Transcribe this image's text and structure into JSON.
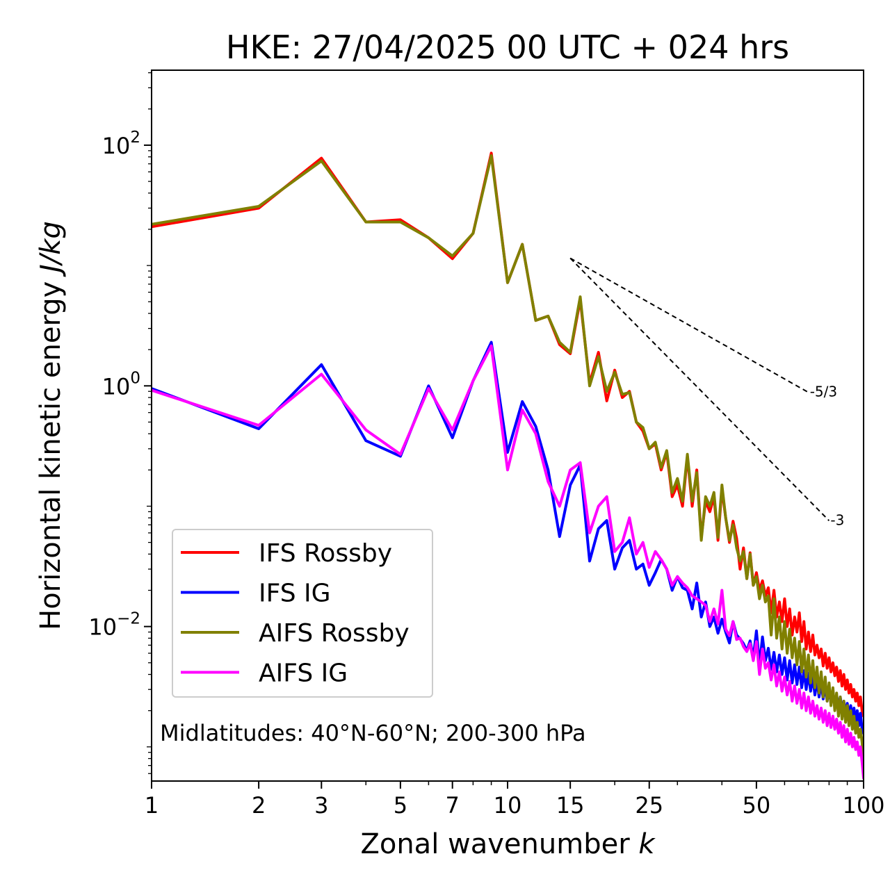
{
  "chart_data": {
    "type": "line",
    "title": "HKE: 27/04/2025 00 UTC + 024 hrs",
    "xlabel": "Zonal wavenumber ",
    "xlabel_italic": "k",
    "ylabel": "Horizontal kinetic energy ",
    "ylabel_italic": "J/kg",
    "x_scale": "log",
    "y_scale": "log",
    "xlim": [
      1,
      100
    ],
    "ylim": [
      0.00052,
      420
    ],
    "x_ticks": [
      {
        "value": 1,
        "label": "1"
      },
      {
        "value": 2,
        "label": "2"
      },
      {
        "value": 3,
        "label": "3"
      },
      {
        "value": 5,
        "label": "5"
      },
      {
        "value": 7,
        "label": "7"
      },
      {
        "value": 10,
        "label": "10"
      },
      {
        "value": 15,
        "label": "15"
      },
      {
        "value": 25,
        "label": "25"
      },
      {
        "value": 50,
        "label": "50"
      },
      {
        "value": 100,
        "label": "100"
      }
    ],
    "y_ticks": [
      {
        "value": 0.01,
        "base": "10",
        "exp": "−2"
      },
      {
        "value": 1,
        "base": "10",
        "exp": "0"
      },
      {
        "value": 100,
        "base": "10",
        "exp": "2"
      }
    ],
    "grid": false,
    "legend_position": "lower-left",
    "annotation": "Midlatitudes: 40°N-60°N; 200-300 hPa",
    "reference_lines": [
      {
        "label": "-5/3",
        "slope": -1.6667,
        "x": [
          15,
          70
        ],
        "y_start": 11.5
      },
      {
        "label": "-3",
        "slope": -3,
        "x": [
          15,
          80
        ],
        "y_start": 11.5
      }
    ],
    "series": [
      {
        "name": "IFS Rossby",
        "color": "#ff0000",
        "x": [
          1,
          2,
          3,
          4,
          5,
          6,
          7,
          8,
          9,
          10,
          11,
          12,
          13,
          14,
          15,
          16,
          17,
          18,
          19,
          20,
          21,
          22,
          23,
          24,
          25,
          26,
          27,
          28,
          29,
          30,
          31,
          32,
          33,
          34,
          35,
          36,
          37,
          38,
          39,
          40,
          41,
          42,
          43,
          44,
          45,
          46,
          47,
          48,
          49,
          50,
          51,
          52,
          53,
          54,
          55,
          56,
          57,
          58,
          59,
          60,
          61,
          62,
          63,
          64,
          65,
          66,
          67,
          68,
          69,
          70,
          71,
          72,
          73,
          74,
          75,
          76,
          77,
          78,
          79,
          80,
          81,
          82,
          83,
          84,
          85,
          86,
          87,
          88,
          89,
          90,
          91,
          92,
          93,
          94,
          95,
          96,
          97,
          98,
          99,
          100
        ],
        "y": [
          21,
          30,
          78,
          23,
          24,
          17,
          11.4,
          18.5,
          86,
          7.2,
          15,
          3.5,
          3.8,
          2.2,
          1.85,
          5.2,
          1.05,
          1.9,
          0.75,
          1.35,
          0.8,
          0.9,
          0.5,
          0.42,
          0.3,
          0.33,
          0.2,
          0.28,
          0.12,
          0.15,
          0.1,
          0.26,
          0.1,
          0.2,
          0.055,
          0.11,
          0.09,
          0.12,
          0.052,
          0.14,
          0.08,
          0.05,
          0.075,
          0.054,
          0.03,
          0.045,
          0.025,
          0.041,
          0.022,
          0.028,
          0.02,
          0.024,
          0.018,
          0.021,
          0.013,
          0.02,
          0.012,
          0.016,
          0.011,
          0.017,
          0.01,
          0.014,
          0.0085,
          0.012,
          0.009,
          0.013,
          0.0075,
          0.011,
          0.0065,
          0.009,
          0.0062,
          0.0085,
          0.0058,
          0.007,
          0.0055,
          0.0065,
          0.0047,
          0.006,
          0.0045,
          0.0055,
          0.0042,
          0.005,
          0.0039,
          0.0046,
          0.0035,
          0.0043,
          0.0032,
          0.004,
          0.003,
          0.0036,
          0.0028,
          0.0033,
          0.0026,
          0.003,
          0.0024,
          0.0028,
          0.0022,
          0.0026,
          0.002,
          0.0018
        ]
      },
      {
        "name": "IFS IG",
        "color": "#0000ff",
        "x": [
          1,
          2,
          3,
          4,
          5,
          6,
          7,
          8,
          9,
          10,
          11,
          12,
          13,
          14,
          15,
          16,
          17,
          18,
          19,
          20,
          21,
          22,
          23,
          24,
          25,
          26,
          27,
          28,
          29,
          30,
          31,
          32,
          33,
          34,
          35,
          36,
          37,
          38,
          39,
          40,
          41,
          42,
          43,
          44,
          45,
          46,
          47,
          48,
          49,
          50,
          51,
          52,
          53,
          54,
          55,
          56,
          57,
          58,
          59,
          60,
          61,
          62,
          63,
          64,
          65,
          66,
          67,
          68,
          69,
          70,
          71,
          72,
          73,
          74,
          75,
          76,
          77,
          78,
          79,
          80,
          81,
          82,
          83,
          84,
          85,
          86,
          87,
          88,
          89,
          90,
          91,
          92,
          93,
          94,
          95,
          96,
          97,
          98,
          99,
          100
        ],
        "y": [
          0.95,
          0.44,
          1.5,
          0.35,
          0.26,
          1,
          0.37,
          1.1,
          2.3,
          0.28,
          0.74,
          0.46,
          0.2,
          0.056,
          0.15,
          0.22,
          0.035,
          0.065,
          0.076,
          0.03,
          0.045,
          0.052,
          0.03,
          0.033,
          0.022,
          0.028,
          0.036,
          0.03,
          0.02,
          0.026,
          0.021,
          0.02,
          0.014,
          0.023,
          0.012,
          0.016,
          0.01,
          0.012,
          0.0088,
          0.0115,
          0.009,
          0.0073,
          0.011,
          0.0085,
          0.0079,
          0.0072,
          0.0063,
          0.0076,
          0.0055,
          0.0092,
          0.0048,
          0.0082,
          0.0052,
          0.0066,
          0.0044,
          0.0061,
          0.0042,
          0.0058,
          0.004,
          0.0055,
          0.0036,
          0.0052,
          0.0034,
          0.0048,
          0.0033,
          0.0046,
          0.0031,
          0.0043,
          0.003,
          0.0041,
          0.0029,
          0.0038,
          0.0027,
          0.0036,
          0.0026,
          0.0034,
          0.0025,
          0.0032,
          0.0024,
          0.003,
          0.0023,
          0.0028,
          0.0022,
          0.0027,
          0.0021,
          0.0026,
          0.002,
          0.0024,
          0.0019,
          0.0023,
          0.0018,
          0.0022,
          0.0017,
          0.0021,
          0.0016,
          0.002,
          0.0015,
          0.0019,
          0.0014,
          0.0013
        ]
      },
      {
        "name": "AIFS Rossby",
        "color": "#808000",
        "x": [
          1,
          2,
          3,
          4,
          5,
          6,
          7,
          8,
          9,
          10,
          11,
          12,
          13,
          14,
          15,
          16,
          17,
          18,
          19,
          20,
          21,
          22,
          23,
          24,
          25,
          26,
          27,
          28,
          29,
          30,
          31,
          32,
          33,
          34,
          35,
          36,
          37,
          38,
          39,
          40,
          41,
          42,
          43,
          44,
          45,
          46,
          47,
          48,
          49,
          50,
          51,
          52,
          53,
          54,
          55,
          56,
          57,
          58,
          59,
          60,
          61,
          62,
          63,
          64,
          65,
          66,
          67,
          68,
          69,
          70,
          71,
          72,
          73,
          74,
          75,
          76,
          77,
          78,
          79,
          80,
          81,
          82,
          83,
          84,
          85,
          86,
          87,
          88,
          89,
          90,
          91,
          92,
          93,
          94,
          95,
          96,
          97,
          98,
          99,
          100
        ],
        "y": [
          22,
          31,
          74,
          23,
          23,
          17,
          12,
          18.5,
          82,
          7.2,
          15,
          3.5,
          3.8,
          2.3,
          1.9,
          5.5,
          1.0,
          1.75,
          0.9,
          1.3,
          0.85,
          0.88,
          0.5,
          0.45,
          0.3,
          0.34,
          0.21,
          0.29,
          0.13,
          0.17,
          0.11,
          0.27,
          0.11,
          0.19,
          0.052,
          0.12,
          0.1,
          0.13,
          0.055,
          0.15,
          0.08,
          0.052,
          0.07,
          0.045,
          0.035,
          0.042,
          0.025,
          0.04,
          0.022,
          0.026,
          0.017,
          0.022,
          0.016,
          0.018,
          0.0085,
          0.017,
          0.008,
          0.012,
          0.0065,
          0.011,
          0.006,
          0.0095,
          0.0055,
          0.008,
          0.0048,
          0.0075,
          0.0042,
          0.0065,
          0.0038,
          0.0058,
          0.0034,
          0.0052,
          0.0031,
          0.0046,
          0.0028,
          0.0042,
          0.0026,
          0.0038,
          0.0024,
          0.0034,
          0.0022,
          0.0031,
          0.002,
          0.0028,
          0.0018,
          0.0026,
          0.0017,
          0.0024,
          0.0016,
          0.0022,
          0.0015,
          0.002,
          0.0014,
          0.0018,
          0.0013,
          0.0016,
          0.0012,
          0.0014,
          0.0011,
          0.00075
        ]
      },
      {
        "name": "AIFS IG",
        "color": "#ff00ff",
        "x": [
          1,
          2,
          3,
          4,
          5,
          6,
          7,
          8,
          9,
          10,
          11,
          12,
          13,
          14,
          15,
          16,
          17,
          18,
          19,
          20,
          21,
          22,
          23,
          24,
          25,
          26,
          27,
          28,
          29,
          30,
          31,
          32,
          33,
          34,
          35,
          36,
          37,
          38,
          39,
          40,
          41,
          42,
          43,
          44,
          45,
          46,
          47,
          48,
          49,
          50,
          51,
          52,
          53,
          54,
          55,
          56,
          57,
          58,
          59,
          60,
          61,
          62,
          63,
          64,
          65,
          66,
          67,
          68,
          69,
          70,
          71,
          72,
          73,
          74,
          75,
          76,
          77,
          78,
          79,
          80,
          81,
          82,
          83,
          84,
          85,
          86,
          87,
          88,
          89,
          90,
          91,
          92,
          93,
          94,
          95,
          96,
          97,
          98,
          99,
          100
        ],
        "y": [
          0.92,
          0.47,
          1.25,
          0.43,
          0.27,
          0.95,
          0.43,
          1.1,
          2.15,
          0.2,
          0.63,
          0.4,
          0.16,
          0.1,
          0.2,
          0.23,
          0.06,
          0.1,
          0.12,
          0.042,
          0.05,
          0.08,
          0.04,
          0.05,
          0.031,
          0.042,
          0.036,
          0.03,
          0.022,
          0.026,
          0.023,
          0.021,
          0.018,
          0.017,
          0.016,
          0.015,
          0.011,
          0.014,
          0.0105,
          0.02,
          0.0095,
          0.0084,
          0.011,
          0.0078,
          0.008,
          0.0068,
          0.0062,
          0.0072,
          0.0052,
          0.0075,
          0.004,
          0.0065,
          0.0045,
          0.005,
          0.0036,
          0.0048,
          0.0032,
          0.0042,
          0.0029,
          0.0038,
          0.0027,
          0.0035,
          0.0024,
          0.0032,
          0.0023,
          0.003,
          0.0021,
          0.0028,
          0.002,
          0.0026,
          0.0019,
          0.0024,
          0.0018,
          0.0022,
          0.0017,
          0.0021,
          0.0016,
          0.002,
          0.0015,
          0.0019,
          0.00145,
          0.0018,
          0.0014,
          0.0017,
          0.0013,
          0.0016,
          0.0012,
          0.0015,
          0.0011,
          0.0014,
          0.00105,
          0.0013,
          0.001,
          0.0012,
          0.00095,
          0.0011,
          0.00085,
          0.001,
          0.00075,
          0.00055
        ]
      }
    ]
  }
}
